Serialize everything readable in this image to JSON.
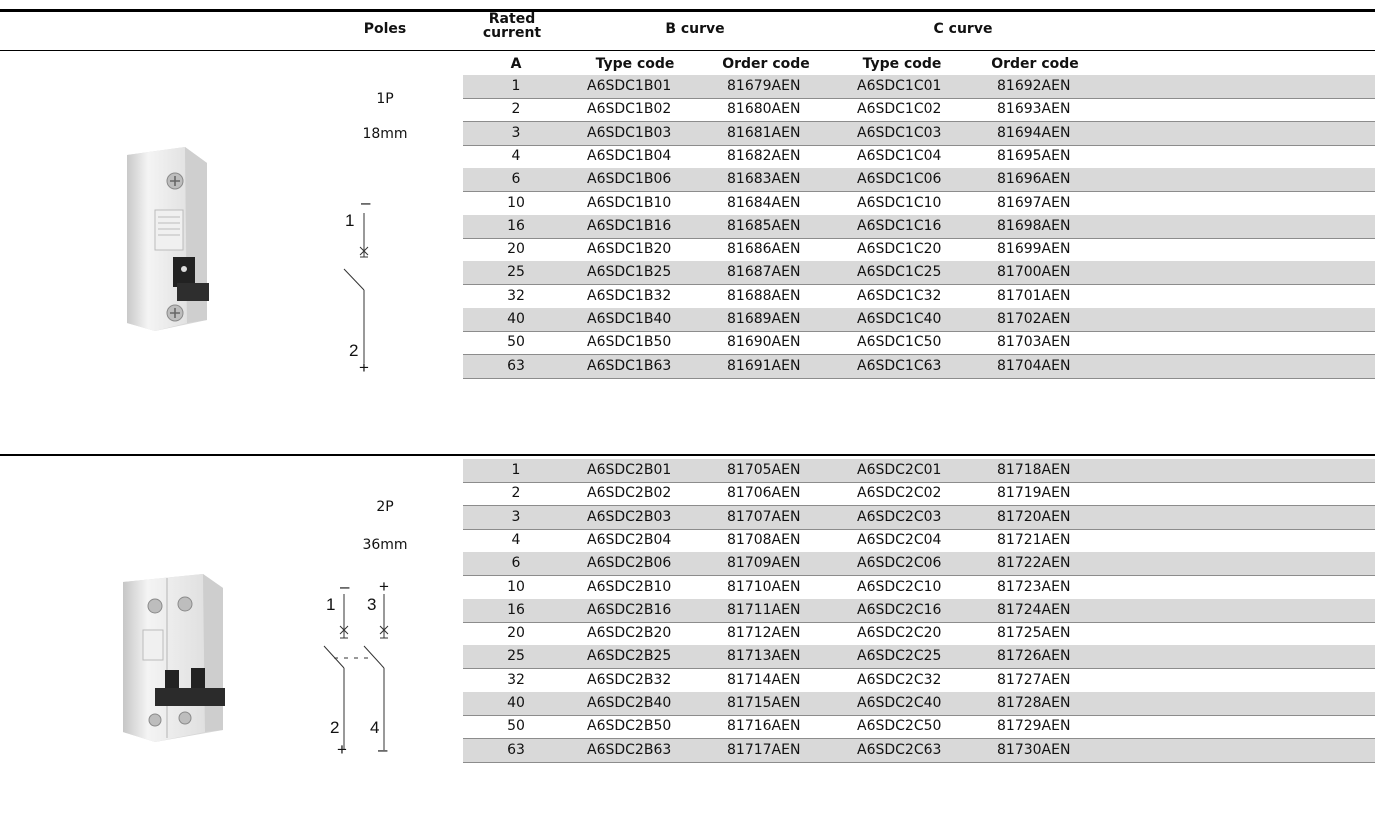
{
  "header": {
    "poles": "Poles",
    "rated_current_line1": "Rated",
    "rated_current_line2": "current",
    "b_curve": "B curve",
    "c_curve": "C curve",
    "unit": "A",
    "type_code": "Type code",
    "order_code": "Order code"
  },
  "groups": [
    {
      "poles": "1P",
      "width": "18mm",
      "symbol_labels": {
        "t1": "1",
        "t2": "2",
        "top": "–",
        "bottom": "+"
      },
      "rows": [
        {
          "a": "1",
          "b_type": "A6SDC1B01",
          "b_order": "81679AEN",
          "c_type": "A6SDC1C01",
          "c_order": "81692AEN"
        },
        {
          "a": "2",
          "b_type": "A6SDC1B02",
          "b_order": "81680AEN",
          "c_type": "A6SDC1C02",
          "c_order": "81693AEN"
        },
        {
          "a": "3",
          "b_type": "A6SDC1B03",
          "b_order": "81681AEN",
          "c_type": "A6SDC1C03",
          "c_order": "81694AEN"
        },
        {
          "a": "4",
          "b_type": "A6SDC1B04",
          "b_order": "81682AEN",
          "c_type": "A6SDC1C04",
          "c_order": "81695AEN"
        },
        {
          "a": "6",
          "b_type": "A6SDC1B06",
          "b_order": "81683AEN",
          "c_type": "A6SDC1C06",
          "c_order": "81696AEN"
        },
        {
          "a": "10",
          "b_type": "A6SDC1B10",
          "b_order": "81684AEN",
          "c_type": "A6SDC1C10",
          "c_order": "81697AEN"
        },
        {
          "a": "16",
          "b_type": "A6SDC1B16",
          "b_order": "81685AEN",
          "c_type": "A6SDC1C16",
          "c_order": "81698AEN"
        },
        {
          "a": "20",
          "b_type": "A6SDC1B20",
          "b_order": "81686AEN",
          "c_type": "A6SDC1C20",
          "c_order": "81699AEN"
        },
        {
          "a": "25",
          "b_type": "A6SDC1B25",
          "b_order": "81687AEN",
          "c_type": "A6SDC1C25",
          "c_order": "81700AEN"
        },
        {
          "a": "32",
          "b_type": "A6SDC1B32",
          "b_order": "81688AEN",
          "c_type": "A6SDC1C32",
          "c_order": "81701AEN"
        },
        {
          "a": "40",
          "b_type": "A6SDC1B40",
          "b_order": "81689AEN",
          "c_type": "A6SDC1C40",
          "c_order": "81702AEN"
        },
        {
          "a": "50",
          "b_type": "A6SDC1B50",
          "b_order": "81690AEN",
          "c_type": "A6SDC1C50",
          "c_order": "81703AEN"
        },
        {
          "a": "63",
          "b_type": "A6SDC1B63",
          "b_order": "81691AEN",
          "c_type": "A6SDC1C63",
          "c_order": "81704AEN"
        }
      ]
    },
    {
      "poles": "2P",
      "width": "36mm",
      "symbol_labels": {
        "t1": "1",
        "t2": "2",
        "t3": "3",
        "t4": "4",
        "top_left": "–",
        "top_right": "+",
        "bottom_left": "+",
        "bottom_right": "–"
      },
      "rows": [
        {
          "a": "1",
          "b_type": "A6SDC2B01",
          "b_order": "81705AEN",
          "c_type": "A6SDC2C01",
          "c_order": "81718AEN"
        },
        {
          "a": "2",
          "b_type": "A6SDC2B02",
          "b_order": "81706AEN",
          "c_type": "A6SDC2C02",
          "c_order": "81719AEN"
        },
        {
          "a": "3",
          "b_type": "A6SDC2B03",
          "b_order": "81707AEN",
          "c_type": "A6SDC2C03",
          "c_order": "81720AEN"
        },
        {
          "a": "4",
          "b_type": "A6SDC2B04",
          "b_order": "81708AEN",
          "c_type": "A6SDC2C04",
          "c_order": "81721AEN"
        },
        {
          "a": "6",
          "b_type": "A6SDC2B06",
          "b_order": "81709AEN",
          "c_type": "A6SDC2C06",
          "c_order": "81722AEN"
        },
        {
          "a": "10",
          "b_type": "A6SDC2B10",
          "b_order": "81710AEN",
          "c_type": "A6SDC2C10",
          "c_order": "81723AEN"
        },
        {
          "a": "16",
          "b_type": "A6SDC2B16",
          "b_order": "81711AEN",
          "c_type": "A6SDC2C16",
          "c_order": "81724AEN"
        },
        {
          "a": "20",
          "b_type": "A6SDC2B20",
          "b_order": "81712AEN",
          "c_type": "A6SDC2C20",
          "c_order": "81725AEN"
        },
        {
          "a": "25",
          "b_type": "A6SDC2B25",
          "b_order": "81713AEN",
          "c_type": "A6SDC2C25",
          "c_order": "81726AEN"
        },
        {
          "a": "32",
          "b_type": "A6SDC2B32",
          "b_order": "81714AEN",
          "c_type": "A6SDC2C32",
          "c_order": "81727AEN"
        },
        {
          "a": "40",
          "b_type": "A6SDC2B40",
          "b_order": "81715AEN",
          "c_type": "A6SDC2C40",
          "c_order": "81728AEN"
        },
        {
          "a": "50",
          "b_type": "A6SDC2B50",
          "b_order": "81716AEN",
          "c_type": "A6SDC2C50",
          "c_order": "81729AEN"
        },
        {
          "a": "63",
          "b_type": "A6SDC2B63",
          "b_order": "81717AEN",
          "c_type": "A6SDC2C63",
          "c_order": "81730AEN"
        }
      ]
    }
  ],
  "colors": {
    "row_shade": "#d9d9d9",
    "rule": "#000000",
    "row_line": "#8c8c8c"
  }
}
